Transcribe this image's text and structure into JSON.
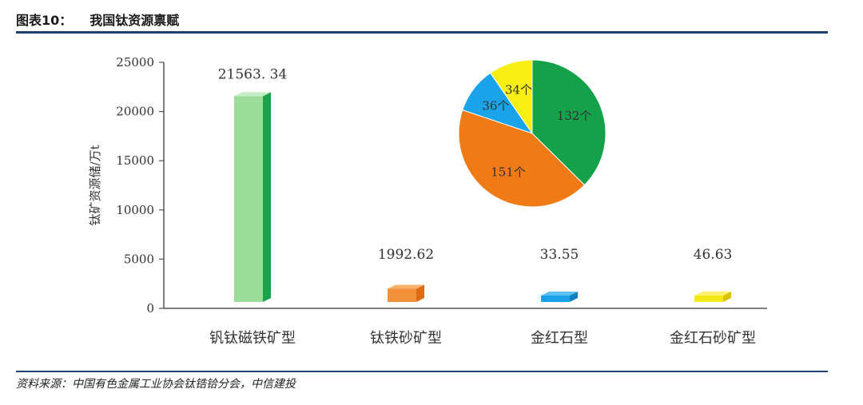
{
  "header": {
    "figure_no": "图表10：",
    "title": "我国钛资源禀赋"
  },
  "footer": {
    "source": "资料来源：中国有色金属工业协会钛锆铪分会，中信建投"
  },
  "colors": {
    "rule": "#1f3f73",
    "axis": "#555555",
    "bar_front": [
      "#9bdc9b",
      "#f2913a",
      "#19a0e6",
      "#f4ea1a"
    ],
    "bar_side": [
      "#1aa34a",
      "#e06a12",
      "#0f7fc0",
      "#d8c400"
    ],
    "bar_top": [
      "#c4edc4",
      "#f8b06a",
      "#5cc0f2",
      "#fbf26a"
    ]
  },
  "chart_data": [
    {
      "type": "bar",
      "ylabel": "钛矿资源储/万t",
      "ylim": [
        0,
        25000
      ],
      "yticks": [
        0,
        5000,
        10000,
        15000,
        20000,
        25000
      ],
      "categories": [
        "钒钛磁铁矿型",
        "钛铁砂矿型",
        "金红石型",
        "金红石砂矿型"
      ],
      "values": [
        21563.34,
        1992.62,
        33.55,
        46.63
      ],
      "value_labels": [
        "21563. 34",
        "1992.62",
        "33.55",
        "46.63"
      ],
      "grid": false
    },
    {
      "type": "pie",
      "slices": [
        {
          "label": "132个",
          "value": 132,
          "color": "#13a24a"
        },
        {
          "label": "151个",
          "value": 151,
          "color": "#f07a16"
        },
        {
          "label": "36个",
          "value": 36,
          "color": "#1aa3e8"
        },
        {
          "label": "34个",
          "value": 34,
          "color": "#f7ee12"
        }
      ]
    }
  ]
}
